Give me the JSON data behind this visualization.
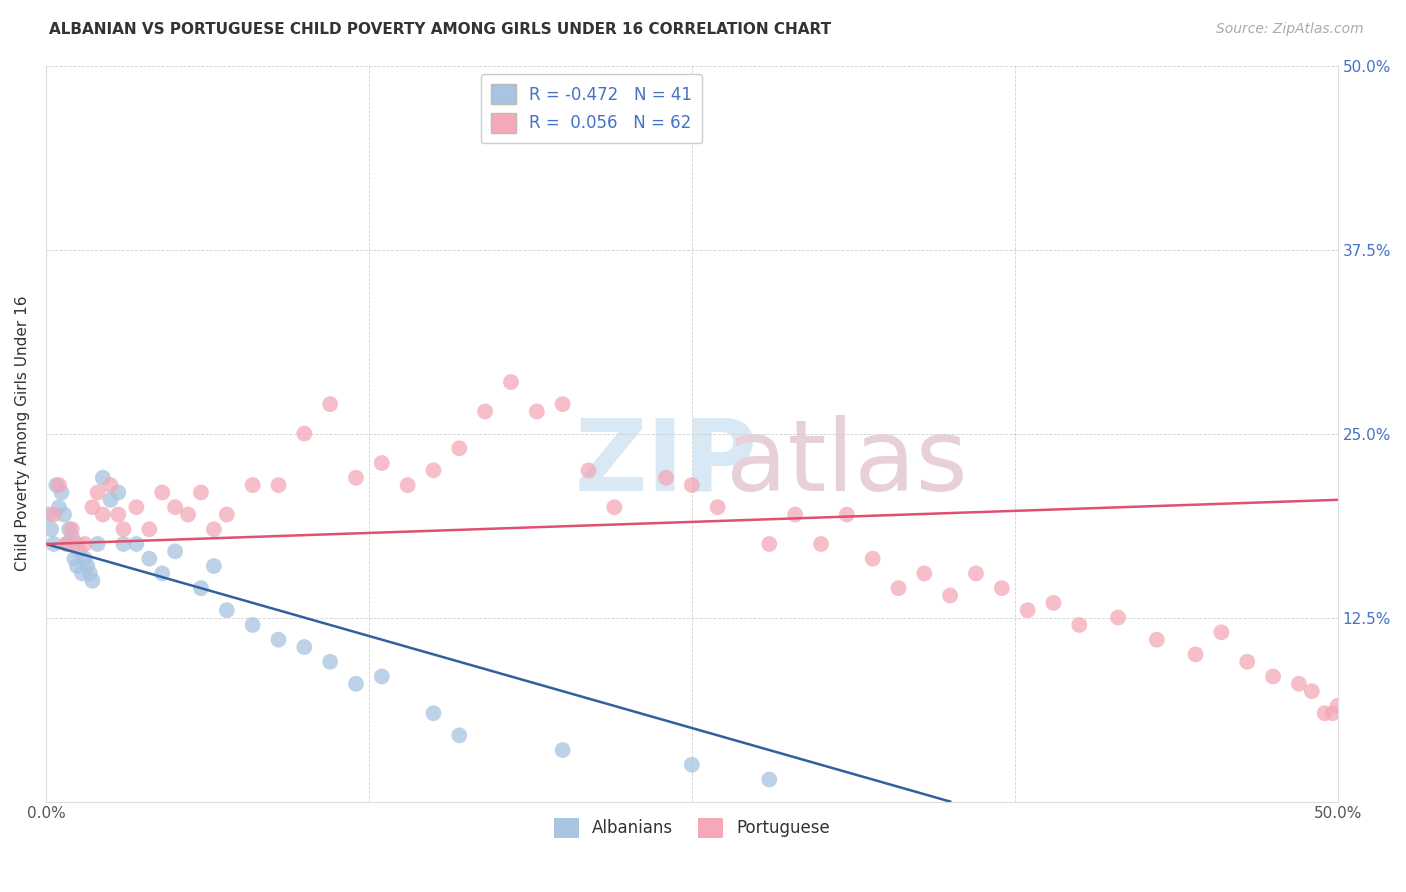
{
  "title": "ALBANIAN VS PORTUGUESE CHILD POVERTY AMONG GIRLS UNDER 16 CORRELATION CHART",
  "source": "Source: ZipAtlas.com",
  "ylabel": "Child Poverty Among Girls Under 16",
  "xlim": [
    0.0,
    0.5
  ],
  "ylim": [
    0.0,
    0.5
  ],
  "xticks": [
    0.0,
    0.125,
    0.25,
    0.375,
    0.5
  ],
  "yticks": [
    0.0,
    0.125,
    0.25,
    0.375,
    0.5
  ],
  "legend_R_albanian": "-0.472",
  "legend_N_albanian": "41",
  "legend_R_portuguese": "0.056",
  "legend_N_portuguese": "62",
  "albanian_color": "#a8c4e0",
  "portuguese_color": "#f4a8b8",
  "albanian_line_color": "#3060a0",
  "portuguese_line_color": "#e05070",
  "alb_line_x0": 0.0,
  "alb_line_y0": 0.175,
  "alb_line_x1": 0.35,
  "alb_line_y1": 0.0,
  "port_line_x0": 0.0,
  "port_line_y0": 0.175,
  "port_line_x1": 0.5,
  "port_line_y1": 0.205,
  "albanian_x": [
    0.001,
    0.002,
    0.003,
    0.004,
    0.005,
    0.006,
    0.007,
    0.008,
    0.009,
    0.01,
    0.011,
    0.012,
    0.013,
    0.014,
    0.015,
    0.016,
    0.017,
    0.018,
    0.02,
    0.022,
    0.025,
    0.028,
    0.03,
    0.035,
    0.04,
    0.045,
    0.05,
    0.06,
    0.065,
    0.07,
    0.08,
    0.09,
    0.1,
    0.11,
    0.12,
    0.13,
    0.15,
    0.16,
    0.2,
    0.25,
    0.28
  ],
  "albanian_y": [
    0.195,
    0.185,
    0.175,
    0.215,
    0.2,
    0.21,
    0.195,
    0.175,
    0.185,
    0.18,
    0.165,
    0.16,
    0.17,
    0.155,
    0.165,
    0.16,
    0.155,
    0.15,
    0.175,
    0.22,
    0.205,
    0.21,
    0.175,
    0.175,
    0.165,
    0.155,
    0.17,
    0.145,
    0.16,
    0.13,
    0.12,
    0.11,
    0.105,
    0.095,
    0.08,
    0.085,
    0.06,
    0.045,
    0.035,
    0.025,
    0.015
  ],
  "portuguese_x": [
    0.003,
    0.005,
    0.008,
    0.01,
    0.012,
    0.015,
    0.018,
    0.02,
    0.022,
    0.025,
    0.028,
    0.03,
    0.035,
    0.04,
    0.045,
    0.05,
    0.055,
    0.06,
    0.065,
    0.07,
    0.08,
    0.09,
    0.1,
    0.11,
    0.12,
    0.13,
    0.14,
    0.15,
    0.16,
    0.17,
    0.18,
    0.19,
    0.2,
    0.21,
    0.22,
    0.24,
    0.25,
    0.26,
    0.28,
    0.29,
    0.3,
    0.31,
    0.32,
    0.33,
    0.34,
    0.35,
    0.36,
    0.37,
    0.38,
    0.39,
    0.4,
    0.415,
    0.43,
    0.445,
    0.455,
    0.465,
    0.475,
    0.485,
    0.49,
    0.495,
    0.498,
    0.5
  ],
  "portuguese_y": [
    0.195,
    0.215,
    0.175,
    0.185,
    0.175,
    0.175,
    0.2,
    0.21,
    0.195,
    0.215,
    0.195,
    0.185,
    0.2,
    0.185,
    0.21,
    0.2,
    0.195,
    0.21,
    0.185,
    0.195,
    0.215,
    0.215,
    0.25,
    0.27,
    0.22,
    0.23,
    0.215,
    0.225,
    0.24,
    0.265,
    0.285,
    0.265,
    0.27,
    0.225,
    0.2,
    0.22,
    0.215,
    0.2,
    0.175,
    0.195,
    0.175,
    0.195,
    0.165,
    0.145,
    0.155,
    0.14,
    0.155,
    0.145,
    0.13,
    0.135,
    0.12,
    0.125,
    0.11,
    0.1,
    0.115,
    0.095,
    0.085,
    0.08,
    0.075,
    0.06,
    0.06,
    0.065
  ]
}
